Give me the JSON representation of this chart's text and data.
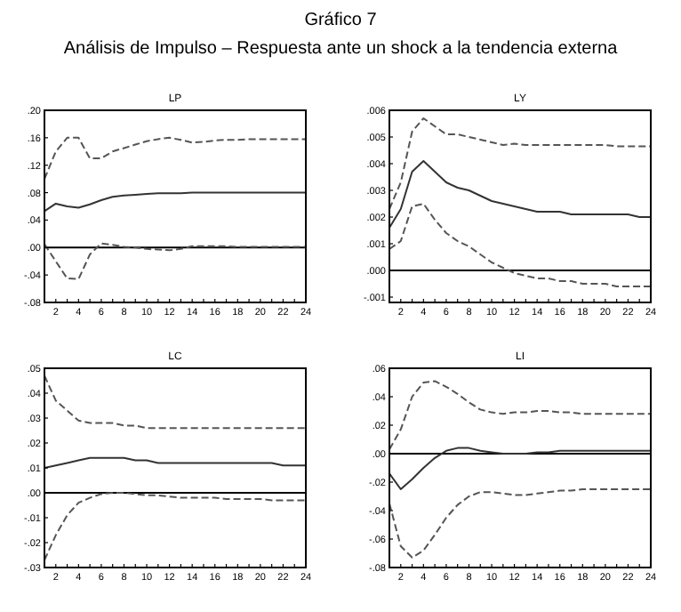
{
  "chart_data": [
    {
      "type": "line",
      "title": "Gráfico 7",
      "subtitle": "Análisis de Impulso – Respuesta  ante un shock a  la tendencia externa",
      "annotations": [
        "LP"
      ],
      "x": [
        1,
        2,
        3,
        4,
        5,
        6,
        7,
        8,
        9,
        10,
        11,
        12,
        13,
        14,
        15,
        16,
        17,
        18,
        19,
        20,
        21,
        22,
        23,
        24
      ],
      "xlim": [
        1,
        24
      ],
      "xticks": [
        {
          "value": 1,
          "label": null
        },
        2,
        {
          "value": 3,
          "label": null
        },
        4,
        {
          "value": 5,
          "label": null
        },
        6,
        {
          "value": 7,
          "label": null
        },
        8,
        {
          "value": 9,
          "label": null
        },
        10,
        {
          "value": 11,
          "label": null
        },
        12,
        {
          "value": 13,
          "label": null
        },
        14,
        {
          "value": 15,
          "label": null
        },
        16,
        {
          "value": 17,
          "label": null
        },
        18,
        {
          "value": 19,
          "label": null
        },
        20,
        {
          "value": 21,
          "label": null
        },
        22,
        {
          "value": 23,
          "label": null
        },
        24
      ],
      "ylim": [
        -0.08,
        0.2
      ],
      "yticks": [
        {
          "value": -0.08,
          "label": "-.08"
        },
        {
          "value": -0.04,
          "label": "-.04"
        },
        {
          "value": 0,
          "label": ".00"
        },
        {
          "value": 0.04,
          "label": ".04"
        },
        {
          "value": 0.08,
          "label": ".08"
        },
        {
          "value": 0.12,
          "label": ".12"
        },
        {
          "value": 0.16,
          "label": ".16"
        },
        {
          "value": 0.2,
          "label": ".20"
        }
      ],
      "grid": false,
      "ref_lines": [
        {
          "axis": "y",
          "value": 0,
          "color": "#000000"
        }
      ],
      "series": [
        {
          "color": "#555555",
          "line_style": "dashed",
          "values": [
            0.1,
            0.14,
            0.16,
            0.16,
            0.13,
            0.13,
            0.14,
            0.145,
            0.15,
            0.155,
            0.158,
            0.16,
            0.157,
            0.153,
            0.154,
            0.156,
            0.157,
            0.157,
            0.158,
            0.158,
            0.158,
            0.158,
            0.158,
            0.158
          ]
        },
        {
          "color": "#333333",
          "line_style": "solid",
          "values": [
            0.053,
            0.064,
            0.06,
            0.058,
            0.063,
            0.069,
            0.074,
            0.076,
            0.077,
            0.078,
            0.079,
            0.079,
            0.079,
            0.08,
            0.08,
            0.08,
            0.08,
            0.08,
            0.08,
            0.08,
            0.08,
            0.08,
            0.08,
            0.08
          ]
        },
        {
          "color": "#555555",
          "line_style": "dashed",
          "values": [
            0.005,
            -0.02,
            -0.045,
            -0.046,
            -0.01,
            0.006,
            0.004,
            0.001,
            0,
            -0.002,
            -0.003,
            -0.004,
            -0.002,
            0.002,
            0.002,
            0.002,
            0.002,
            0.001,
            0.001,
            0.001,
            0.001,
            0.001,
            0.001,
            0.001
          ]
        }
      ]
    },
    {
      "type": "line",
      "annotations": [
        "LY"
      ],
      "x": [
        1,
        2,
        3,
        4,
        5,
        6,
        7,
        8,
        9,
        10,
        11,
        12,
        13,
        14,
        15,
        16,
        17,
        18,
        19,
        20,
        21,
        22,
        23,
        24
      ],
      "xlim": [
        1,
        24
      ],
      "xticks": [
        {
          "value": 1,
          "label": null
        },
        2,
        {
          "value": 3,
          "label": null
        },
        4,
        {
          "value": 5,
          "label": null
        },
        6,
        {
          "value": 7,
          "label": null
        },
        8,
        {
          "value": 9,
          "label": null
        },
        10,
        {
          "value": 11,
          "label": null
        },
        12,
        {
          "value": 13,
          "label": null
        },
        14,
        {
          "value": 15,
          "label": null
        },
        16,
        {
          "value": 17,
          "label": null
        },
        18,
        {
          "value": 19,
          "label": null
        },
        20,
        {
          "value": 21,
          "label": null
        },
        22,
        {
          "value": 23,
          "label": null
        },
        24
      ],
      "ylim": [
        -0.0012,
        0.006
      ],
      "yticks": [
        {
          "value": -0.001,
          "label": "-.001"
        },
        {
          "value": 0,
          "label": ".000"
        },
        {
          "value": 0.001,
          "label": ".001"
        },
        {
          "value": 0.002,
          "label": ".002"
        },
        {
          "value": 0.003,
          "label": ".003"
        },
        {
          "value": 0.004,
          "label": ".004"
        },
        {
          "value": 0.005,
          "label": ".005"
        },
        {
          "value": 0.006,
          "label": ".006"
        }
      ],
      "grid": false,
      "ref_lines": [
        {
          "axis": "y",
          "value": 0,
          "color": "#000000"
        }
      ],
      "series": [
        {
          "color": "#555555",
          "line_style": "dashed",
          "values": [
            0.0023,
            0.0033,
            0.0052,
            0.0057,
            0.0054,
            0.0051,
            0.0051,
            0.005,
            0.0049,
            0.0048,
            0.0047,
            0.00475,
            0.0047,
            0.0047,
            0.0047,
            0.0047,
            0.0047,
            0.0047,
            0.0047,
            0.0047,
            0.00465,
            0.00465,
            0.00465,
            0.00465
          ]
        },
        {
          "color": "#333333",
          "line_style": "solid",
          "values": [
            0.0016,
            0.0023,
            0.0037,
            0.0041,
            0.0037,
            0.0033,
            0.0031,
            0.003,
            0.0028,
            0.0026,
            0.0025,
            0.0024,
            0.0023,
            0.0022,
            0.0022,
            0.0022,
            0.0021,
            0.0021,
            0.0021,
            0.0021,
            0.0021,
            0.0021,
            0.002,
            0.002
          ]
        },
        {
          "color": "#555555",
          "line_style": "dashed",
          "values": [
            0.0008,
            0.0011,
            0.0024,
            0.0025,
            0.0019,
            0.0014,
            0.0011,
            0.0009,
            0.0006,
            0.0003,
            0.0001,
            -0.0001,
            -0.0002,
            -0.0003,
            -0.0003,
            -0.0004,
            -0.0004,
            -0.0005,
            -0.0005,
            -0.0005,
            -0.0006,
            -0.0006,
            -0.0006,
            -0.0006
          ]
        }
      ]
    },
    {
      "type": "line",
      "annotations": [
        "LC"
      ],
      "x": [
        1,
        2,
        3,
        4,
        5,
        6,
        7,
        8,
        9,
        10,
        11,
        12,
        13,
        14,
        15,
        16,
        17,
        18,
        19,
        20,
        21,
        22,
        23,
        24
      ],
      "xlim": [
        1,
        24
      ],
      "xticks": [
        {
          "value": 1,
          "label": null
        },
        2,
        {
          "value": 3,
          "label": null
        },
        4,
        {
          "value": 5,
          "label": null
        },
        6,
        {
          "value": 7,
          "label": null
        },
        8,
        {
          "value": 9,
          "label": null
        },
        10,
        {
          "value": 11,
          "label": null
        },
        12,
        {
          "value": 13,
          "label": null
        },
        14,
        {
          "value": 15,
          "label": null
        },
        16,
        {
          "value": 17,
          "label": null
        },
        18,
        {
          "value": 19,
          "label": null
        },
        20,
        {
          "value": 21,
          "label": null
        },
        22,
        {
          "value": 23,
          "label": null
        },
        24
      ],
      "ylim": [
        -0.03,
        0.05
      ],
      "yticks": [
        {
          "value": -0.03,
          "label": "-.03"
        },
        {
          "value": -0.02,
          "label": "-.02"
        },
        {
          "value": -0.01,
          "label": "-.01"
        },
        {
          "value": 0,
          "label": ".00"
        },
        {
          "value": 0.01,
          "label": ".01"
        },
        {
          "value": 0.02,
          "label": ".02"
        },
        {
          "value": 0.03,
          "label": ".03"
        },
        {
          "value": 0.04,
          "label": ".04"
        },
        {
          "value": 0.05,
          "label": ".05"
        }
      ],
      "grid": false,
      "ref_lines": [
        {
          "axis": "y",
          "value": 0,
          "color": "#000000"
        }
      ],
      "series": [
        {
          "color": "#555555",
          "line_style": "dashed",
          "values": [
            0.047,
            0.037,
            0.033,
            0.029,
            0.028,
            0.028,
            0.028,
            0.027,
            0.027,
            0.026,
            0.026,
            0.026,
            0.026,
            0.026,
            0.026,
            0.026,
            0.026,
            0.026,
            0.026,
            0.026,
            0.026,
            0.026,
            0.026,
            0.026
          ]
        },
        {
          "color": "#333333",
          "line_style": "solid",
          "values": [
            0.01,
            0.011,
            0.012,
            0.013,
            0.014,
            0.014,
            0.014,
            0.014,
            0.013,
            0.013,
            0.012,
            0.012,
            0.012,
            0.012,
            0.012,
            0.012,
            0.012,
            0.012,
            0.012,
            0.012,
            0.012,
            0.011,
            0.011,
            0.011
          ]
        },
        {
          "color": "#555555",
          "line_style": "dashed",
          "values": [
            -0.027,
            -0.017,
            -0.009,
            -0.004,
            -0.002,
            -0.0005,
            0,
            0,
            -0.0005,
            -0.001,
            -0.001,
            -0.0015,
            -0.002,
            -0.002,
            -0.002,
            -0.002,
            -0.0025,
            -0.0025,
            -0.0025,
            -0.0025,
            -0.003,
            -0.003,
            -0.003,
            -0.003
          ]
        }
      ]
    },
    {
      "type": "line",
      "annotations": [
        "LI"
      ],
      "x": [
        1,
        2,
        3,
        4,
        5,
        6,
        7,
        8,
        9,
        10,
        11,
        12,
        13,
        14,
        15,
        16,
        17,
        18,
        19,
        20,
        21,
        22,
        23,
        24
      ],
      "xlim": [
        1,
        24
      ],
      "xticks": [
        {
          "value": 1,
          "label": null
        },
        2,
        {
          "value": 3,
          "label": null
        },
        4,
        {
          "value": 5,
          "label": null
        },
        6,
        {
          "value": 7,
          "label": null
        },
        8,
        {
          "value": 9,
          "label": null
        },
        10,
        {
          "value": 11,
          "label": null
        },
        12,
        {
          "value": 13,
          "label": null
        },
        14,
        {
          "value": 15,
          "label": null
        },
        16,
        {
          "value": 17,
          "label": null
        },
        18,
        {
          "value": 19,
          "label": null
        },
        20,
        {
          "value": 21,
          "label": null
        },
        22,
        {
          "value": 23,
          "label": null
        },
        24
      ],
      "ylim": [
        -0.08,
        0.06
      ],
      "yticks": [
        {
          "value": -0.08,
          "label": "-.08"
        },
        {
          "value": -0.06,
          "label": "-.06"
        },
        {
          "value": -0.04,
          "label": "-.04"
        },
        {
          "value": -0.02,
          "label": "-.02"
        },
        {
          "value": 0,
          "label": ".00"
        },
        {
          "value": 0.02,
          "label": ".02"
        },
        {
          "value": 0.04,
          "label": ".04"
        },
        {
          "value": 0.06,
          "label": ".06"
        }
      ],
      "grid": false,
      "ref_lines": [
        {
          "axis": "y",
          "value": 0,
          "color": "#000000"
        }
      ],
      "series": [
        {
          "color": "#555555",
          "line_style": "dashed",
          "values": [
            0.003,
            0.017,
            0.04,
            0.05,
            0.051,
            0.047,
            0.042,
            0.036,
            0.031,
            0.029,
            0.028,
            0.029,
            0.029,
            0.03,
            0.03,
            0.029,
            0.029,
            0.028,
            0.028,
            0.028,
            0.028,
            0.028,
            0.028,
            0.028
          ]
        },
        {
          "color": "#333333",
          "line_style": "solid",
          "values": [
            -0.014,
            -0.025,
            -0.018,
            -0.01,
            -0.003,
            0.002,
            0.004,
            0.004,
            0.002,
            0.001,
            0,
            0,
            0,
            0.001,
            0.001,
            0.002,
            0.002,
            0.002,
            0.002,
            0.002,
            0.002,
            0.002,
            0.002,
            0.002
          ]
        },
        {
          "color": "#555555",
          "line_style": "dashed",
          "values": [
            -0.035,
            -0.065,
            -0.073,
            -0.068,
            -0.057,
            -0.045,
            -0.036,
            -0.03,
            -0.027,
            -0.027,
            -0.028,
            -0.029,
            -0.029,
            -0.028,
            -0.027,
            -0.026,
            -0.026,
            -0.025,
            -0.025,
            -0.025,
            -0.025,
            -0.025,
            -0.025,
            -0.025
          ]
        }
      ]
    }
  ]
}
